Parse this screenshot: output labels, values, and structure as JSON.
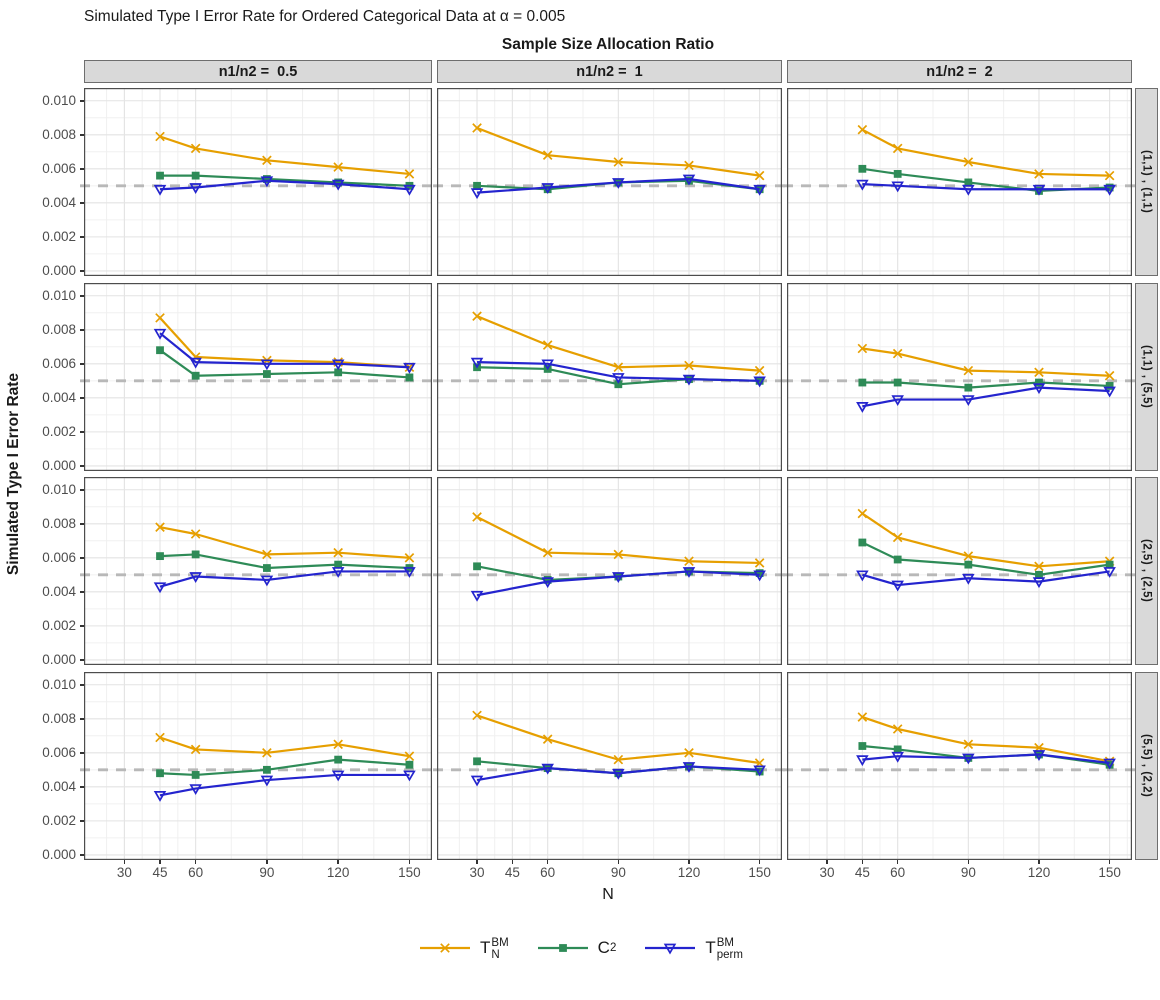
{
  "title": "Simulated Type I Error Rate for Ordered Categorical Data at α = 0.005",
  "facet_title": "Sample Size Allocation Ratio",
  "xlabel": "N",
  "ylabel": "Simulated Type I Error Rate",
  "chart_data": {
    "type": "line",
    "title": "Simulated Type I Error Rate for Ordered Categorical Data at α = 0.005",
    "facet_title": "Sample Size Allocation Ratio",
    "xlabel": "N",
    "ylabel": "Simulated Type I Error Rate",
    "x_ticks": [
      30,
      45,
      60,
      90,
      120,
      150
    ],
    "x_minor": [
      22.5,
      37.5,
      52.5,
      75,
      105,
      135,
      157.5
    ],
    "y_ticks": [
      0,
      0.002,
      0.004,
      0.006,
      0.008,
      0.01
    ],
    "y_tick_labels": [
      "0.000",
      "0.002",
      "0.004",
      "0.006",
      "0.008",
      "0.010"
    ],
    "y_minor": [
      0.001,
      0.003,
      0.005,
      0.007,
      0.009
    ],
    "xlim": [
      13,
      159.5
    ],
    "ylim": [
      -0.0003,
      0.01075
    ],
    "reference_line": 0.005,
    "grid": true,
    "legend_position": "bottom",
    "col_facets": [
      "n1/n2 =  0.5",
      "n1/n2 =  1",
      "n1/n2 =  2"
    ],
    "row_facets": [
      "(1,1) , (1,1)",
      "(1,1) , (5,5)",
      "(2,5) , (2,5)",
      "(5,5) , (2,2)"
    ],
    "series": [
      {
        "id": "TN",
        "label_base": "T",
        "label_sup": "BM",
        "label_sub": "N",
        "color": "#E69F00",
        "marker": "x"
      },
      {
        "id": "C2",
        "label_base": "C",
        "label_sup": "2",
        "label_sub": "",
        "color": "#2E8B57",
        "marker": "square"
      },
      {
        "id": "Tperm",
        "label_base": "T",
        "label_sup": "BM",
        "label_sub": "perm",
        "color": "#2424CE",
        "marker": "triangle-down-open"
      }
    ],
    "reference_color": "#b8b8b8",
    "panels": [
      {
        "row": 0,
        "col": 0,
        "x": [
          45,
          60,
          90,
          120,
          150
        ],
        "TN": [
          0.0079,
          0.0072,
          0.0065,
          0.0061,
          0.0057
        ],
        "C2": [
          0.0056,
          0.0056,
          0.0054,
          0.0052,
          0.005
        ],
        "Tperm": [
          0.0048,
          0.0049,
          0.0053,
          0.0051,
          0.0048
        ]
      },
      {
        "row": 0,
        "col": 1,
        "x": [
          30,
          60,
          90,
          120,
          150
        ],
        "TN": [
          0.0084,
          0.0068,
          0.0064,
          0.0062,
          0.0056
        ],
        "C2": [
          0.005,
          0.0048,
          0.0052,
          0.0053,
          0.0048
        ],
        "Tperm": [
          0.0046,
          0.0049,
          0.0052,
          0.0054,
          0.0048
        ]
      },
      {
        "row": 0,
        "col": 2,
        "x": [
          45,
          60,
          90,
          120,
          150
        ],
        "TN": [
          0.0083,
          0.0072,
          0.0064,
          0.0057,
          0.0056
        ],
        "C2": [
          0.006,
          0.0057,
          0.0052,
          0.0047,
          0.0049
        ],
        "Tperm": [
          0.0051,
          0.005,
          0.0048,
          0.0048,
          0.0048
        ]
      },
      {
        "row": 1,
        "col": 0,
        "x": [
          45,
          60,
          90,
          120,
          150
        ],
        "TN": [
          0.0087,
          0.0064,
          0.0062,
          0.0061,
          0.0058
        ],
        "C2": [
          0.0068,
          0.0053,
          0.0054,
          0.0055,
          0.0052
        ],
        "Tperm": [
          0.0078,
          0.0061,
          0.006,
          0.006,
          0.0058
        ]
      },
      {
        "row": 1,
        "col": 1,
        "x": [
          30,
          60,
          90,
          120,
          150
        ],
        "TN": [
          0.0088,
          0.0071,
          0.0058,
          0.0059,
          0.0056
        ],
        "C2": [
          0.0058,
          0.0057,
          0.0048,
          0.0051,
          0.005
        ],
        "Tperm": [
          0.0061,
          0.006,
          0.0052,
          0.0051,
          0.005
        ]
      },
      {
        "row": 1,
        "col": 2,
        "x": [
          45,
          60,
          90,
          120,
          150
        ],
        "TN": [
          0.0069,
          0.0066,
          0.0056,
          0.0055,
          0.0053
        ],
        "C2": [
          0.0049,
          0.0049,
          0.0046,
          0.0049,
          0.0047
        ],
        "Tperm": [
          0.0035,
          0.0039,
          0.0039,
          0.0046,
          0.0044
        ]
      },
      {
        "row": 2,
        "col": 0,
        "x": [
          45,
          60,
          90,
          120,
          150
        ],
        "TN": [
          0.0078,
          0.0074,
          0.0062,
          0.0063,
          0.006
        ],
        "C2": [
          0.0061,
          0.0062,
          0.0054,
          0.0056,
          0.0054
        ],
        "Tperm": [
          0.0043,
          0.0049,
          0.0047,
          0.0052,
          0.0052
        ]
      },
      {
        "row": 2,
        "col": 1,
        "x": [
          30,
          60,
          90,
          120,
          150
        ],
        "TN": [
          0.0084,
          0.0063,
          0.0062,
          0.0058,
          0.0057
        ],
        "C2": [
          0.0055,
          0.0047,
          0.0049,
          0.0052,
          0.0051
        ],
        "Tperm": [
          0.0038,
          0.0046,
          0.0049,
          0.0052,
          0.005
        ]
      },
      {
        "row": 2,
        "col": 2,
        "x": [
          45,
          60,
          90,
          120,
          150
        ],
        "TN": [
          0.0086,
          0.0072,
          0.0061,
          0.0055,
          0.0058
        ],
        "C2": [
          0.0069,
          0.0059,
          0.0056,
          0.005,
          0.0056
        ],
        "Tperm": [
          0.005,
          0.0044,
          0.0048,
          0.0046,
          0.0052
        ]
      },
      {
        "row": 3,
        "col": 0,
        "x": [
          45,
          60,
          90,
          120,
          150
        ],
        "TN": [
          0.0069,
          0.0062,
          0.006,
          0.0065,
          0.0058
        ],
        "C2": [
          0.0048,
          0.0047,
          0.005,
          0.0056,
          0.0053
        ],
        "Tperm": [
          0.0035,
          0.0039,
          0.0044,
          0.0047,
          0.0047
        ]
      },
      {
        "row": 3,
        "col": 1,
        "x": [
          30,
          60,
          90,
          120,
          150
        ],
        "TN": [
          0.0082,
          0.0068,
          0.0056,
          0.006,
          0.0054
        ],
        "C2": [
          0.0055,
          0.0051,
          0.0048,
          0.0052,
          0.0049
        ],
        "Tperm": [
          0.0044,
          0.0051,
          0.0048,
          0.0052,
          0.005
        ]
      },
      {
        "row": 3,
        "col": 2,
        "x": [
          45,
          60,
          90,
          120,
          150
        ],
        "TN": [
          0.0081,
          0.0074,
          0.0065,
          0.0063,
          0.0055
        ],
        "C2": [
          0.0064,
          0.0062,
          0.0057,
          0.0059,
          0.0053
        ],
        "Tperm": [
          0.0056,
          0.0058,
          0.0057,
          0.0059,
          0.0054
        ]
      }
    ]
  },
  "colors": {
    "orange_series": "#E69F00",
    "green_series": "#2E8B57",
    "blue_series": "#2424CE",
    "reference_dash": "#b8b8b8",
    "strip_background": "#d9d9d9",
    "panel_border": "#4d4d4d",
    "grid_major": "#e3e3e3",
    "grid_minor": "#f0f0f0",
    "tick_text": "#4d4d4d"
  }
}
